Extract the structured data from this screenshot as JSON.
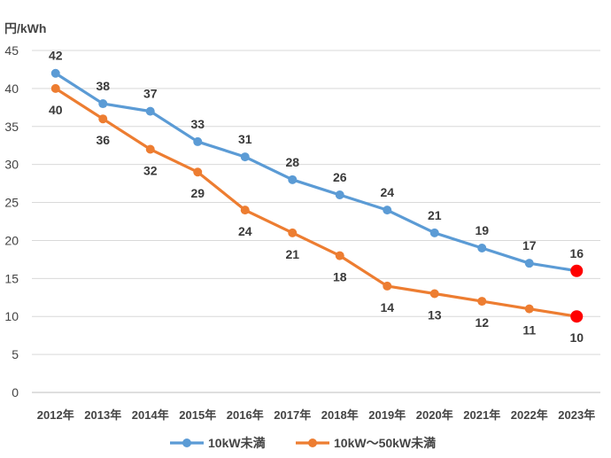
{
  "chart_data": {
    "type": "line",
    "ylabel": "円/kWh",
    "ylim": [
      0,
      45
    ],
    "yticks": [
      0,
      5,
      10,
      15,
      20,
      25,
      30,
      35,
      40,
      45
    ],
    "categories": [
      "2012年",
      "2013年",
      "2014年",
      "2015年",
      "2016年",
      "2017年",
      "2018年",
      "2019年",
      "2020年",
      "2021年",
      "2022年",
      "2023年"
    ],
    "grid": true,
    "legend_position": "bottom",
    "series": [
      {
        "name": "10kW未満",
        "color": "#5B9BD5",
        "values": [
          42,
          38,
          37,
          33,
          31,
          28,
          26,
          24,
          21,
          19,
          17,
          16
        ],
        "label_position": "above"
      },
      {
        "name": "10kW〜50kW未満",
        "color": "#ED7D31",
        "values": [
          40,
          36,
          32,
          29,
          24,
          21,
          18,
          14,
          13,
          12,
          11,
          10
        ],
        "label_position": "below"
      }
    ],
    "highlight_last_point_color": "#FF0000"
  }
}
